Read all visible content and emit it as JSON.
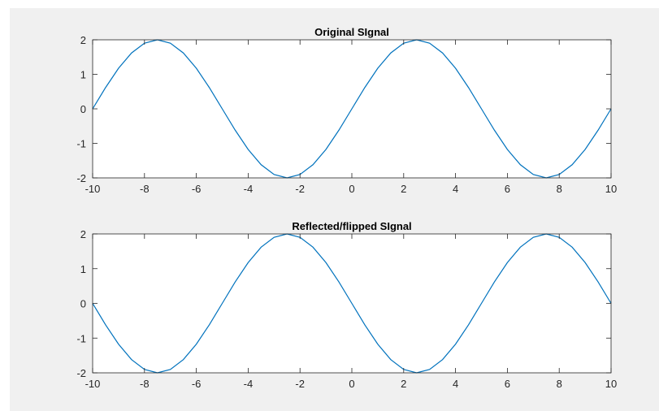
{
  "chart_data": [
    {
      "type": "line",
      "title": "Original SIgnal",
      "xlabel": "",
      "ylabel": "",
      "xlim": [
        -10,
        10
      ],
      "ylim": [
        -2,
        2
      ],
      "xticks": [
        -10,
        -8,
        -6,
        -4,
        -2,
        0,
        2,
        4,
        6,
        8,
        10
      ],
      "yticks": [
        -2,
        -1,
        0,
        1,
        2
      ],
      "grid": false,
      "series": [
        {
          "color": "#0072bd",
          "x": [
            -10,
            -9.5,
            -9,
            -8.5,
            -8,
            -7.5,
            -7,
            -6.5,
            -6,
            -5.5,
            -5,
            -4.5,
            -4,
            -3.5,
            -3,
            -2.5,
            -2,
            -1.5,
            -1,
            -0.5,
            0,
            0.5,
            1,
            1.5,
            2,
            2.5,
            3,
            3.5,
            4,
            4.5,
            5,
            5.5,
            6,
            6.5,
            7,
            7.5,
            8,
            8.5,
            9,
            9.5,
            10
          ],
          "y": [
            0,
            0.618,
            1.176,
            1.618,
            1.902,
            2,
            1.902,
            1.618,
            1.176,
            0.618,
            0,
            -0.618,
            -1.176,
            -1.618,
            -1.902,
            -2,
            -1.902,
            -1.618,
            -1.176,
            -0.618,
            0,
            0.618,
            1.176,
            1.618,
            1.902,
            2,
            1.902,
            1.618,
            1.176,
            0.618,
            0,
            -0.618,
            -1.176,
            -1.618,
            -1.902,
            -2,
            -1.902,
            -1.618,
            -1.176,
            -0.618,
            0
          ]
        }
      ]
    },
    {
      "type": "line",
      "title": "Reflected/flipped SIgnal",
      "xlabel": "",
      "ylabel": "",
      "xlim": [
        -10,
        10
      ],
      "ylim": [
        -2,
        2
      ],
      "xticks": [
        -10,
        -8,
        -6,
        -4,
        -2,
        0,
        2,
        4,
        6,
        8,
        10
      ],
      "yticks": [
        -2,
        -1,
        0,
        1,
        2
      ],
      "grid": false,
      "series": [
        {
          "color": "#0072bd",
          "x": [
            -10,
            -9.5,
            -9,
            -8.5,
            -8,
            -7.5,
            -7,
            -6.5,
            -6,
            -5.5,
            -5,
            -4.5,
            -4,
            -3.5,
            -3,
            -2.5,
            -2,
            -1.5,
            -1,
            -0.5,
            0,
            0.5,
            1,
            1.5,
            2,
            2.5,
            3,
            3.5,
            4,
            4.5,
            5,
            5.5,
            6,
            6.5,
            7,
            7.5,
            8,
            8.5,
            9,
            9.5,
            10
          ],
          "y": [
            0,
            -0.618,
            -1.176,
            -1.618,
            -1.902,
            -2,
            -1.902,
            -1.618,
            -1.176,
            -0.618,
            0,
            0.618,
            1.176,
            1.618,
            1.902,
            2,
            1.902,
            1.618,
            1.176,
            0.618,
            0,
            -0.618,
            -1.176,
            -1.618,
            -1.902,
            -2,
            -1.902,
            -1.618,
            -1.176,
            -0.618,
            0,
            0.618,
            1.176,
            1.618,
            1.902,
            2,
            1.902,
            1.618,
            1.176,
            0.618,
            0
          ]
        }
      ]
    }
  ]
}
